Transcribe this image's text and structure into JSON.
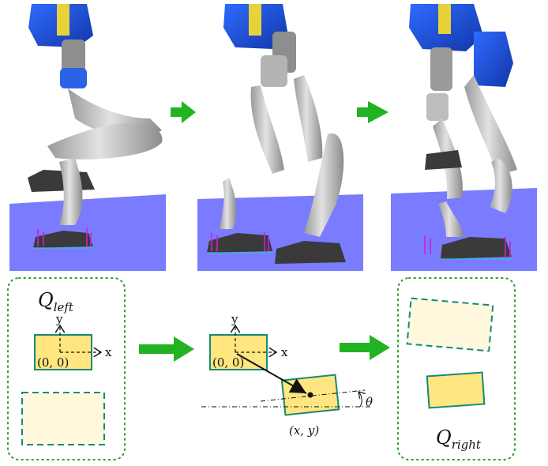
{
  "panels": {
    "q_left": {
      "symbol": "Q",
      "subscript": "left"
    },
    "q_right": {
      "symbol": "Q",
      "subscript": "right"
    }
  },
  "axes": {
    "x_label": "x",
    "y_label": "y"
  },
  "labels": {
    "origin_left": "(0, 0)",
    "origin_mid": "(0, 0)",
    "target_point": "(x, y)",
    "theta": "θ"
  },
  "colors": {
    "floor": "#7b7bff",
    "robot_blue": "#1e4fd6",
    "arrow_green": "#22b322",
    "footprint_fill": "#ffe680",
    "footprint_edge": "#138a7a",
    "candidate_fill": "#fff8dc",
    "dotted_frame": "#2aa02a"
  }
}
